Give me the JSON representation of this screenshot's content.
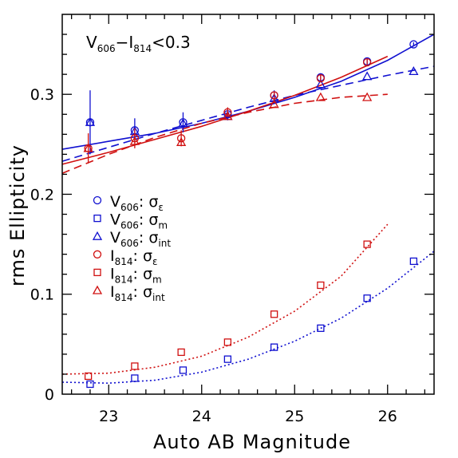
{
  "chart_data": {
    "type": "scatter",
    "title": "",
    "annotation": {
      "band1": "V",
      "band1_sub": "606",
      "sep": "−",
      "band2": "I",
      "band2_sub": "814",
      "condition": "<0.3"
    },
    "xlabel": "Auto AB Magnitude",
    "ylabel": "rms Ellipticity",
    "xlim": [
      22.5,
      26.5
    ],
    "ylim": [
      0,
      0.38
    ],
    "xticks": [
      {
        "value": 23,
        "label": "23"
      },
      {
        "value": 24,
        "label": "24"
      },
      {
        "value": 25,
        "label": "25"
      },
      {
        "value": 26,
        "label": "26"
      }
    ],
    "yticks": [
      {
        "value": 0,
        "label": "0"
      },
      {
        "value": 0.1,
        "label": "0.1"
      },
      {
        "value": 0.2,
        "label": "0.2"
      },
      {
        "value": 0.3,
        "label": "0.3"
      }
    ],
    "legend_placement": "middle-left",
    "colors": {
      "V606": "#1010d0",
      "I814": "#d01010"
    },
    "series": [
      {
        "name": "V606: σε",
        "band": "V",
        "bandsub": "606",
        "stat": "σ",
        "statsub": "ε",
        "color": "V606",
        "marker": "circle",
        "x": [
          22.8,
          23.28,
          23.8,
          24.28,
          24.78,
          25.28,
          25.78,
          26.28
        ],
        "y": [
          0.272,
          0.264,
          0.272,
          0.28,
          0.299,
          0.317,
          0.333,
          0.35
        ],
        "yerr": [
          0.032,
          0.012,
          0.01,
          0.006,
          0.005,
          0.004,
          0.003,
          0.002
        ]
      },
      {
        "name": "V606: σm",
        "band": "V",
        "bandsub": "606",
        "stat": "σ",
        "statsub": "m",
        "color": "V606",
        "marker": "square",
        "x": [
          22.8,
          23.28,
          23.8,
          24.28,
          24.78,
          25.28,
          25.78,
          26.28
        ],
        "y": [
          0.01,
          0.016,
          0.024,
          0.035,
          0.047,
          0.066,
          0.096,
          0.133
        ]
      },
      {
        "name": "V606: σint",
        "band": "V",
        "bandsub": "606",
        "stat": "σ",
        "statsub": "int",
        "color": "V606",
        "marker": "triangle",
        "x": [
          22.8,
          23.28,
          23.8,
          24.28,
          24.78,
          25.28,
          25.78,
          26.28
        ],
        "y": [
          0.272,
          0.263,
          0.271,
          0.278,
          0.296,
          0.31,
          0.318,
          0.323
        ]
      },
      {
        "name": "I814: σε",
        "band": "I",
        "bandsub": "814",
        "stat": "σ",
        "statsub": "ε",
        "color": "I814",
        "marker": "circle",
        "x": [
          22.78,
          23.28,
          23.78,
          24.28,
          24.78,
          25.28,
          25.78
        ],
        "y": [
          0.246,
          0.256,
          0.256,
          0.282,
          0.299,
          0.316,
          0.332
        ],
        "yerr": [
          0.015,
          0.01,
          0.008,
          0.005,
          0.004,
          0.003,
          0.003
        ]
      },
      {
        "name": "I814: σm",
        "band": "I",
        "bandsub": "814",
        "stat": "σ",
        "statsub": "m",
        "color": "I814",
        "marker": "square",
        "x": [
          22.78,
          23.28,
          23.78,
          24.28,
          24.78,
          25.28,
          25.78
        ],
        "y": [
          0.018,
          0.028,
          0.042,
          0.052,
          0.08,
          0.109,
          0.15
        ]
      },
      {
        "name": "I814: σint",
        "band": "I",
        "bandsub": "814",
        "stat": "σ",
        "statsub": "int",
        "color": "I814",
        "marker": "triangle",
        "x": [
          22.78,
          23.28,
          23.78,
          24.28,
          24.78,
          25.28,
          25.78
        ],
        "y": [
          0.246,
          0.253,
          0.252,
          0.278,
          0.29,
          0.297,
          0.297
        ]
      }
    ],
    "fit_curves": [
      {
        "fits": "V606: σε",
        "color": "V606",
        "style": "solid",
        "x": [
          22.5,
          23.0,
          23.5,
          24.0,
          24.5,
          25.0,
          25.5,
          26.0,
          26.5
        ],
        "y": [
          0.245,
          0.253,
          0.261,
          0.271,
          0.283,
          0.297,
          0.313,
          0.334,
          0.36
        ]
      },
      {
        "fits": "V606: σint",
        "color": "V606",
        "style": "dashed",
        "x": [
          22.5,
          23.0,
          23.5,
          24.0,
          24.5,
          25.0,
          25.5,
          26.0,
          26.5
        ],
        "y": [
          0.233,
          0.247,
          0.261,
          0.274,
          0.287,
          0.299,
          0.309,
          0.319,
          0.328
        ]
      },
      {
        "fits": "V606: σm",
        "color": "V606",
        "style": "dotted",
        "x": [
          22.5,
          23.0,
          23.5,
          24.0,
          24.5,
          25.0,
          25.5,
          26.0,
          26.5
        ],
        "y": [
          0.012,
          0.011,
          0.014,
          0.022,
          0.035,
          0.053,
          0.076,
          0.106,
          0.143
        ]
      },
      {
        "fits": "I814: σε",
        "color": "I814",
        "style": "solid",
        "x": [
          22.5,
          23.0,
          23.5,
          24.0,
          24.5,
          25.0,
          25.5,
          26.0
        ],
        "y": [
          0.23,
          0.242,
          0.255,
          0.268,
          0.283,
          0.299,
          0.317,
          0.338
        ]
      },
      {
        "fits": "I814: σint",
        "color": "I814",
        "style": "dashed",
        "x": [
          22.5,
          23.0,
          23.5,
          24.0,
          24.5,
          25.0,
          25.5,
          26.0
        ],
        "y": [
          0.221,
          0.24,
          0.257,
          0.271,
          0.282,
          0.291,
          0.297,
          0.3
        ]
      },
      {
        "fits": "I814: σm",
        "color": "I814",
        "style": "dotted",
        "x": [
          22.5,
          23.0,
          23.5,
          24.0,
          24.5,
          25.0,
          25.5,
          26.0
        ],
        "y": [
          0.02,
          0.021,
          0.027,
          0.038,
          0.057,
          0.083,
          0.118,
          0.17
        ]
      }
    ]
  }
}
